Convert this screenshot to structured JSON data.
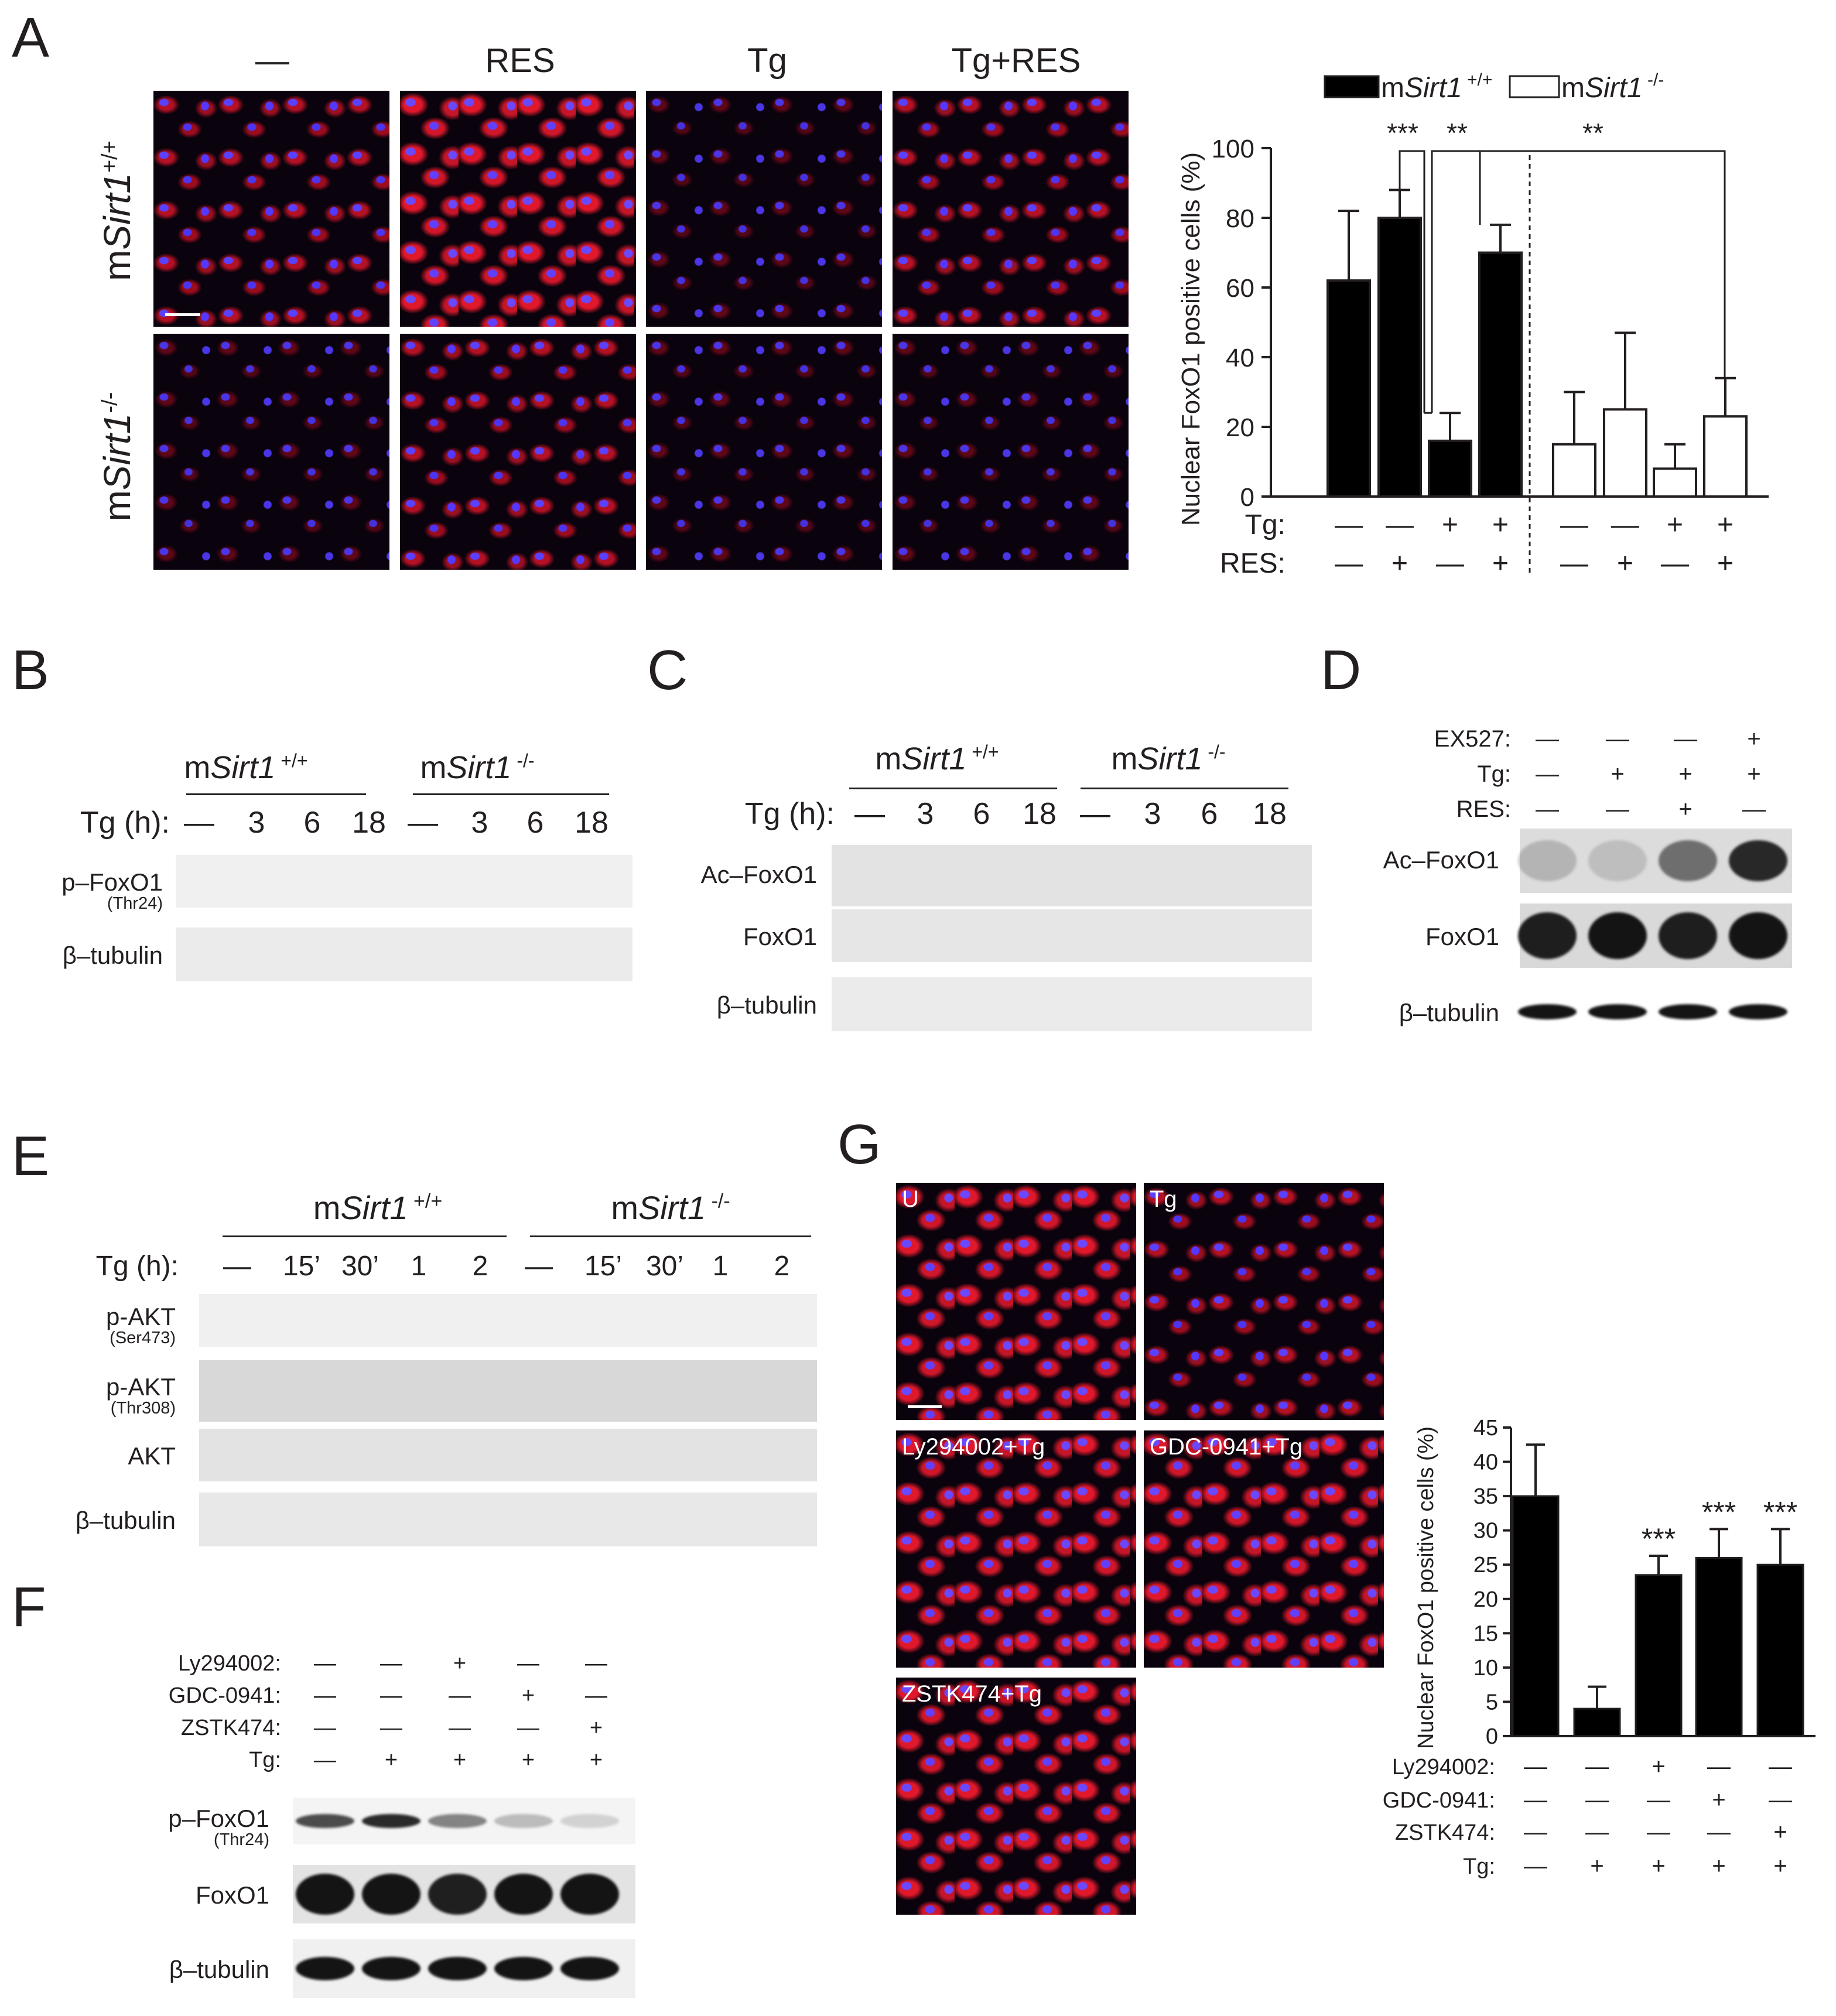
{
  "panels": {
    "A": {
      "label": "A",
      "columns": [
        "—",
        "RES",
        "Tg",
        "Tg+RES"
      ],
      "rows": [
        {
          "prefix": "m",
          "gene": "Sirt1",
          "sup": "+/+"
        },
        {
          "prefix": "m",
          "gene": "Sirt1",
          "sup": "-/-"
        }
      ],
      "legend": [
        {
          "prefix": "m",
          "gene": "Sirt1",
          "sup": " +/+",
          "fill": "#000000"
        },
        {
          "prefix": "m",
          "gene": "Sirt1",
          "sup": " -/-",
          "fill": "#ffffff"
        }
      ],
      "sig": [
        "***",
        "**",
        "**"
      ],
      "cond_labels": [
        "Tg:",
        "RES:"
      ],
      "tg_signs": [
        "—",
        "—",
        "+",
        "+",
        "—",
        "—",
        "+",
        "+"
      ],
      "res_signs": [
        "—",
        "+",
        "—",
        "+",
        "—",
        "+",
        "—",
        "+"
      ]
    },
    "B": {
      "label": "B",
      "groups": [
        {
          "prefix": "m",
          "gene": "Sirt1",
          "sup": " +/+"
        },
        {
          "prefix": "m",
          "gene": "Sirt1",
          "sup": " -/-"
        }
      ],
      "time_label": "Tg (h):",
      "times": [
        "—",
        "3",
        "6",
        "18",
        "—",
        "3",
        "6",
        "18"
      ],
      "blots": [
        {
          "name": "p–FoxO1",
          "sub": "(Thr24)"
        },
        {
          "name": "β–tubulin",
          "sub": ""
        }
      ]
    },
    "C": {
      "label": "C",
      "groups": [
        {
          "prefix": "m",
          "gene": "Sirt1",
          "sup": " +/+"
        },
        {
          "prefix": "m",
          "gene": "Sirt1",
          "sup": " -/-"
        }
      ],
      "time_label": "Tg (h):",
      "times": [
        "—",
        "3",
        "6",
        "18",
        "—",
        "3",
        "6",
        "18"
      ],
      "blots": [
        "Ac–FoxO1",
        "FoxO1",
        "β–tubulin"
      ]
    },
    "D": {
      "label": "D",
      "conditions": [
        {
          "name": "EX527:",
          "signs": [
            "—",
            "—",
            "—",
            "+"
          ]
        },
        {
          "name": "Tg:",
          "signs": [
            "—",
            "+",
            "+",
            "+"
          ]
        },
        {
          "name": "RES:",
          "signs": [
            "—",
            "—",
            "+",
            "—"
          ]
        }
      ],
      "blots": [
        "Ac–FoxO1",
        "FoxO1",
        "β–tubulin"
      ]
    },
    "E": {
      "label": "E",
      "groups": [
        {
          "prefix": "m",
          "gene": "Sirt1",
          "sup": " +/+"
        },
        {
          "prefix": "m",
          "gene": "Sirt1",
          "sup": " -/-"
        }
      ],
      "time_label": "Tg (h):",
      "times": [
        "—",
        "15’",
        "30’",
        "1",
        "2",
        "—",
        "15’",
        "30’",
        "1",
        "2"
      ],
      "blots": [
        {
          "name": "p-AKT",
          "sub": "(Ser473)"
        },
        {
          "name": "p-AKT",
          "sub": "(Thr308)"
        },
        {
          "name": "AKT",
          "sub": ""
        },
        {
          "name": "β–tubulin",
          "sub": ""
        }
      ]
    },
    "F": {
      "label": "F",
      "conditions": [
        {
          "name": "Ly294002:",
          "signs": [
            "—",
            "—",
            "+",
            "—",
            "—"
          ]
        },
        {
          "name": "GDC-0941:",
          "signs": [
            "—",
            "—",
            "—",
            "+",
            "—"
          ]
        },
        {
          "name": "ZSTK474:",
          "signs": [
            "—",
            "—",
            "—",
            "—",
            "+"
          ]
        },
        {
          "name": "Tg:",
          "signs": [
            "—",
            "+",
            "+",
            "+",
            "+"
          ]
        }
      ],
      "blots": [
        {
          "name": "p–FoxO1",
          "sub": "(Thr24)"
        },
        {
          "name": "FoxO1",
          "sub": ""
        },
        {
          "name": "β–tubulin",
          "sub": ""
        }
      ]
    },
    "G": {
      "label": "G",
      "images": [
        "U",
        "Tg",
        "Ly294002+Tg",
        "GDC-0941+Tg",
        "ZSTK474+Tg"
      ],
      "sig": [
        "***",
        "***",
        "***"
      ],
      "conditions": [
        {
          "name": "Ly294002:",
          "signs": [
            "—",
            "—",
            "+",
            "—",
            "—"
          ]
        },
        {
          "name": "GDC-0941:",
          "signs": [
            "—",
            "—",
            "—",
            "+",
            "—"
          ]
        },
        {
          "name": "ZSTK474:",
          "signs": [
            "—",
            "—",
            "—",
            "—",
            "+"
          ]
        },
        {
          "name": "Tg:",
          "signs": [
            "—",
            "+",
            "+",
            "+",
            "+"
          ]
        }
      ]
    }
  },
  "chart_data": [
    {
      "type": "bar",
      "panel": "A",
      "ylabel": "Nuclear FoxO1 positive cells (%)",
      "ylim": [
        0,
        100
      ],
      "yticks": [
        0,
        20,
        40,
        60,
        80,
        100
      ],
      "series": [
        {
          "name": "mSirt1 +/+",
          "fill": "#000000",
          "values": [
            62,
            80,
            16,
            70
          ],
          "errors": [
            20,
            8,
            8,
            8
          ]
        },
        {
          "name": "mSirt1 -/-",
          "fill": "#ffffff",
          "values": [
            15,
            25,
            8,
            23
          ],
          "errors": [
            15,
            22,
            7,
            11
          ]
        }
      ],
      "annotations": [
        "***",
        "**",
        "**"
      ]
    },
    {
      "type": "bar",
      "panel": "G",
      "ylabel": "Nuclear FoxO1 positive cells (%)",
      "ylim": [
        0,
        45
      ],
      "yticks": [
        0,
        5,
        10,
        15,
        20,
        25,
        30,
        35,
        40,
        45
      ],
      "values": [
        35,
        4,
        23.5,
        26,
        25
      ],
      "errors": [
        7.5,
        3.2,
        2.8,
        4.2,
        5.2
      ],
      "annotations": [
        "",
        "",
        "***",
        "***",
        "***"
      ]
    }
  ]
}
